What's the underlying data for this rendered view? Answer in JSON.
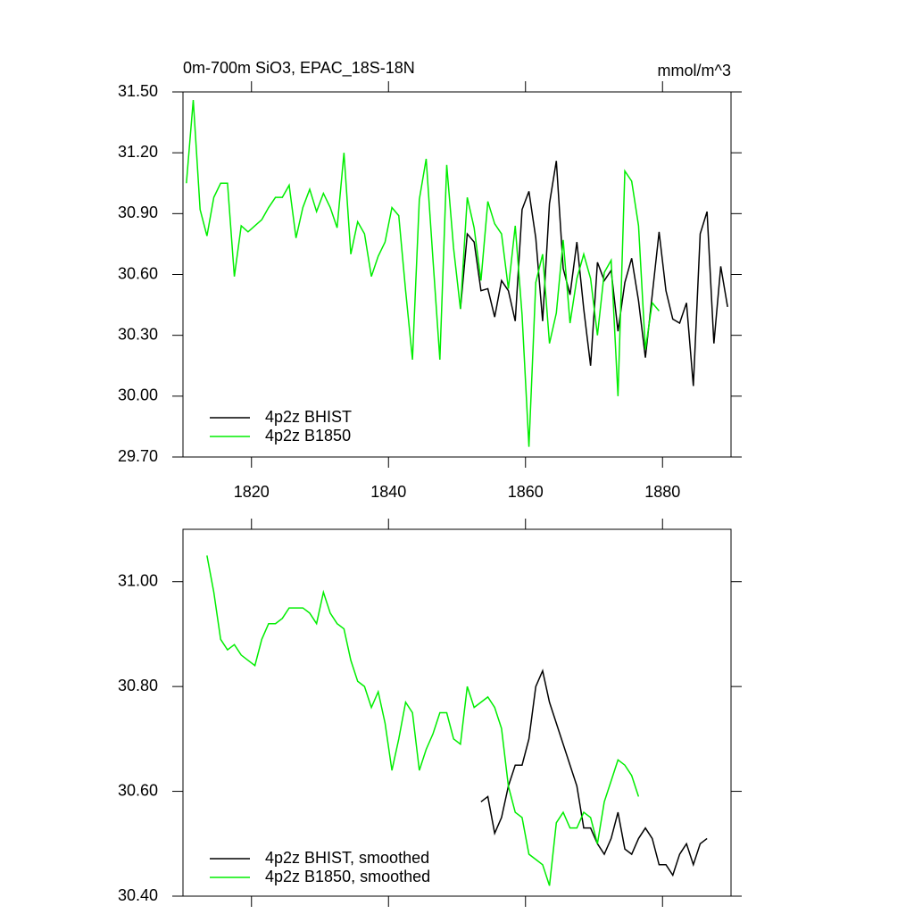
{
  "chart_data": [
    {
      "type": "line",
      "title": "0m-700m SiO3, EPAC_18S-18N",
      "units_label": "mmol/m^3",
      "xlim": [
        1810,
        1890
      ],
      "xticks": [
        1820,
        1840,
        1860,
        1880
      ],
      "show_xtick_labels": true,
      "ylim": [
        29.7,
        31.5
      ],
      "yticks": [
        {
          "value": 29.7,
          "label": "29.70"
        },
        {
          "value": 30.0,
          "label": "30.00"
        },
        {
          "value": 30.3,
          "label": "30.30"
        },
        {
          "value": 30.6,
          "label": "30.60"
        },
        {
          "value": 30.9,
          "label": "30.90"
        },
        {
          "value": 31.2,
          "label": "31.20"
        },
        {
          "value": 31.5,
          "label": "31.50"
        }
      ],
      "series": [
        {
          "name": "4p2z BHIST",
          "color": "#000000",
          "x": [
            1850.5,
            1851.5,
            1852.5,
            1853.5,
            1854.5,
            1855.5,
            1856.5,
            1857.5,
            1858.5,
            1859.5,
            1860.5,
            1861.5,
            1862.5,
            1863.5,
            1864.5,
            1865.5,
            1866.5,
            1867.5,
            1868.5,
            1869.5,
            1870.5,
            1871.5,
            1872.5,
            1873.5,
            1874.5,
            1875.5,
            1876.5,
            1877.5,
            1878.5,
            1879.5,
            1880.5,
            1881.5,
            1882.5,
            1883.5,
            1884.5,
            1885.5,
            1886.5,
            1887.5,
            1888.5,
            1889.5
          ],
          "values": [
            30.43,
            30.8,
            30.76,
            30.52,
            30.53,
            30.39,
            30.57,
            30.52,
            30.37,
            30.92,
            31.01,
            30.78,
            30.37,
            30.95,
            31.16,
            30.63,
            30.5,
            30.76,
            30.43,
            30.15,
            30.66,
            30.57,
            30.62,
            30.32,
            30.56,
            30.68,
            30.47,
            30.19,
            30.5,
            30.81,
            30.52,
            30.38,
            30.36,
            30.46,
            30.05,
            30.8,
            30.91,
            30.26,
            30.64,
            30.44
          ]
        },
        {
          "name": "4p2z B1850",
          "color": "#00ee00",
          "x": [
            1810.5,
            1811.5,
            1812.5,
            1813.5,
            1814.5,
            1815.5,
            1816.5,
            1817.5,
            1818.5,
            1819.5,
            1820.5,
            1821.5,
            1822.5,
            1823.5,
            1824.5,
            1825.5,
            1826.5,
            1827.5,
            1828.5,
            1829.5,
            1830.5,
            1831.5,
            1832.5,
            1833.5,
            1834.5,
            1835.5,
            1836.5,
            1837.5,
            1838.5,
            1839.5,
            1840.5,
            1841.5,
            1842.5,
            1843.5,
            1844.5,
            1845.5,
            1846.5,
            1847.5,
            1848.5,
            1849.5,
            1850.5,
            1851.5,
            1852.5,
            1853.5,
            1854.5,
            1855.5,
            1856.5,
            1857.5,
            1858.5,
            1859.5,
            1860.5,
            1861.5,
            1862.5,
            1863.5,
            1864.5,
            1865.5,
            1866.5,
            1867.5,
            1868.5,
            1869.5,
            1870.5,
            1871.5,
            1872.5,
            1873.5,
            1874.5,
            1875.5,
            1876.5,
            1877.5,
            1878.5,
            1879.5
          ],
          "values": [
            31.05,
            31.46,
            30.92,
            30.79,
            30.98,
            31.05,
            31.05,
            30.59,
            30.84,
            30.81,
            30.84,
            30.87,
            30.93,
            30.98,
            30.98,
            31.04,
            30.78,
            30.93,
            31.02,
            30.91,
            31.0,
            30.93,
            30.83,
            31.2,
            30.7,
            30.86,
            30.8,
            30.59,
            30.69,
            30.76,
            30.93,
            30.89,
            30.52,
            30.18,
            30.97,
            31.17,
            30.67,
            30.18,
            31.14,
            30.73,
            30.43,
            30.98,
            30.83,
            30.57,
            30.96,
            30.85,
            30.8,
            30.53,
            30.84,
            30.4,
            29.75,
            30.56,
            30.7,
            30.26,
            30.41,
            30.77,
            30.36,
            30.58,
            30.7,
            30.58,
            30.3,
            30.61,
            30.67,
            30.0,
            31.11,
            31.06,
            30.84,
            30.23,
            30.46,
            30.42
          ]
        }
      ]
    },
    {
      "type": "line",
      "xlim": [
        1810,
        1890
      ],
      "xticks": [
        1820,
        1840,
        1860,
        1880
      ],
      "show_xtick_labels": false,
      "ylim": [
        30.4,
        31.1
      ],
      "yticks": [
        {
          "value": 30.4,
          "label": "30.40"
        },
        {
          "value": 30.6,
          "label": "30.60"
        },
        {
          "value": 30.8,
          "label": "30.80"
        },
        {
          "value": 31.0,
          "label": "31.00"
        }
      ],
      "series": [
        {
          "name": "4p2z BHIST, smoothed",
          "color": "#000000",
          "x": [
            1853.5,
            1854.5,
            1855.5,
            1856.5,
            1857.5,
            1858.5,
            1859.5,
            1860.5,
            1861.5,
            1862.5,
            1863.5,
            1864.5,
            1865.5,
            1866.5,
            1867.5,
            1868.5,
            1869.5,
            1870.5,
            1871.5,
            1872.5,
            1873.5,
            1874.5,
            1875.5,
            1876.5,
            1877.5,
            1878.5,
            1879.5,
            1880.5,
            1881.5,
            1882.5,
            1883.5,
            1884.5,
            1885.5,
            1886.5
          ],
          "values": [
            30.58,
            30.59,
            30.52,
            30.55,
            30.61,
            30.65,
            30.65,
            30.7,
            30.8,
            30.83,
            30.77,
            30.73,
            30.69,
            30.65,
            30.61,
            30.53,
            30.53,
            30.5,
            30.48,
            30.51,
            30.56,
            30.49,
            30.48,
            30.51,
            30.53,
            30.51,
            30.46,
            30.46,
            30.44,
            30.48,
            30.5,
            30.46,
            30.5,
            30.51
          ]
        },
        {
          "name": "4p2z B1850, smoothed",
          "color": "#00ee00",
          "x": [
            1813.5,
            1814.5,
            1815.5,
            1816.5,
            1817.5,
            1818.5,
            1819.5,
            1820.5,
            1821.5,
            1822.5,
            1823.5,
            1824.5,
            1825.5,
            1826.5,
            1827.5,
            1828.5,
            1829.5,
            1830.5,
            1831.5,
            1832.5,
            1833.5,
            1834.5,
            1835.5,
            1836.5,
            1837.5,
            1838.5,
            1839.5,
            1840.5,
            1841.5,
            1842.5,
            1843.5,
            1844.5,
            1845.5,
            1846.5,
            1847.5,
            1848.5,
            1849.5,
            1850.5,
            1851.5,
            1852.5,
            1853.5,
            1854.5,
            1855.5,
            1856.5,
            1857.5,
            1858.5,
            1859.5,
            1860.5,
            1861.5,
            1862.5,
            1863.5,
            1864.5,
            1865.5,
            1866.5,
            1867.5,
            1868.5,
            1869.5,
            1870.5,
            1871.5,
            1872.5,
            1873.5,
            1874.5,
            1875.5,
            1876.5
          ],
          "values": [
            31.05,
            30.98,
            30.89,
            30.87,
            30.88,
            30.86,
            30.85,
            30.84,
            30.89,
            30.92,
            30.92,
            30.93,
            30.95,
            30.95,
            30.95,
            30.94,
            30.92,
            30.98,
            30.94,
            30.92,
            30.91,
            30.85,
            30.81,
            30.8,
            30.76,
            30.79,
            30.73,
            30.64,
            30.7,
            30.77,
            30.75,
            30.64,
            30.68,
            30.71,
            30.75,
            30.75,
            30.7,
            30.69,
            30.8,
            30.76,
            30.77,
            30.78,
            30.76,
            30.72,
            30.61,
            30.56,
            30.55,
            30.48,
            30.47,
            30.46,
            30.42,
            30.54,
            30.56,
            30.53,
            30.53,
            30.56,
            30.55,
            30.5,
            30.58,
            30.62,
            30.66,
            30.65,
            30.63,
            30.59
          ]
        }
      ]
    }
  ]
}
